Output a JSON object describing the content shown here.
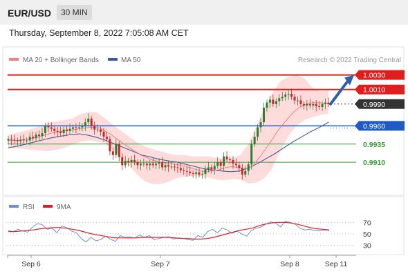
{
  "header": {
    "symbol": "EUR/USD",
    "timeframe": "30 MIN"
  },
  "timestamp": "Thursday, September 8, 2022 7:05:08 AM CET",
  "legend": {
    "ma20": "MA 20 + Bollinger Bands",
    "ma50": "MA 50",
    "rsi": "RSI",
    "rsi_ma": "9MA"
  },
  "copyright": "Research © 2022 Trading Central",
  "colors": {
    "up": "#2e7d32",
    "down": "#c62828",
    "ma20": "#f08080",
    "ma50": "#3b5b9d",
    "band": "#ffd6d6",
    "resistance": "#e11d1d",
    "pivot": "#1e5bc6",
    "support": "#3a9a3a",
    "rsi": "#6b8fd6",
    "rsi_ma": "#e11d1d"
  },
  "chart_data": [
    {
      "type": "candlestick",
      "ylim": [
        0.9875,
        1.0042
      ],
      "grid": false,
      "legend_position": "top",
      "x_ticks": [
        "Sep 6",
        "Sep 7",
        "Sep 8",
        "Sep 11"
      ],
      "current_price": 0.999,
      "levels": [
        {
          "label": "1.0030",
          "value": 1.003,
          "role": "resistance"
        },
        {
          "label": "1.0010",
          "value": 1.001,
          "role": "resistance"
        },
        {
          "label": "0.9990",
          "value": 0.999,
          "role": "current"
        },
        {
          "label": "0.9960",
          "value": 0.996,
          "role": "pivot"
        },
        {
          "label": "0.9935",
          "value": 0.9935,
          "role": "support"
        },
        {
          "label": "0.9910",
          "value": 0.991,
          "role": "support"
        }
      ],
      "forecast": {
        "from": 0.999,
        "to": 1.003,
        "direction": "up"
      },
      "close": [
        0.9942,
        0.9941,
        0.994,
        0.9939,
        0.9941,
        0.994,
        0.994,
        0.9945,
        0.9943,
        0.9948,
        0.9946,
        0.995,
        0.996,
        0.9958,
        0.9956,
        0.9953,
        0.9952,
        0.995,
        0.9955,
        0.9953,
        0.9956,
        0.9958,
        0.9957,
        0.9958,
        0.996,
        0.9965,
        0.997,
        0.996,
        0.9955,
        0.9955,
        0.9952,
        0.9945,
        0.9942,
        0.9925,
        0.992,
        0.9935,
        0.9917,
        0.9906,
        0.9912,
        0.991,
        0.9913,
        0.991,
        0.9906,
        0.9908,
        0.9908,
        0.9906,
        0.9908,
        0.9906,
        0.9908,
        0.991,
        0.9903,
        0.9906,
        0.9904,
        0.9904,
        0.9903,
        0.9902,
        0.9899,
        0.9898,
        0.9897,
        0.9895,
        0.9894,
        0.9896,
        0.9893,
        0.9894,
        0.99,
        0.9903,
        0.99,
        0.9905,
        0.991,
        0.9905,
        0.9918,
        0.9914,
        0.9913,
        0.9908,
        0.9906,
        0.9902,
        0.9893,
        0.9898,
        0.9907,
        0.9935,
        0.9945,
        0.9958,
        0.9965,
        0.9985,
        0.9992,
        0.9996,
        0.999,
        0.9994,
        0.9998,
        1.0,
        1.0003,
        1.0004,
        1.0,
        0.9995,
        0.9995,
        0.999,
        0.9988,
        0.999,
        0.9988,
        0.999,
        0.9987,
        0.9986,
        0.999,
        0.9992,
        0.999
      ],
      "ma20": [
        0.994,
        0.994,
        0.994,
        0.9941,
        0.9942,
        0.9943,
        0.9945,
        0.9947,
        0.9949,
        0.9951,
        0.9952,
        0.9953,
        0.9954,
        0.9955,
        0.9956,
        0.9957,
        0.9958,
        0.9958,
        0.9957,
        0.9953,
        0.9949,
        0.9944,
        0.9939,
        0.9934,
        0.9929,
        0.9925,
        0.992,
        0.9917,
        0.9914,
        0.9912,
        0.991,
        0.9909,
        0.9908,
        0.9907,
        0.9906,
        0.9904,
        0.9902,
        0.99,
        0.9898,
        0.9897,
        0.9898,
        0.9899,
        0.9901,
        0.9903,
        0.9904,
        0.9903,
        0.9902,
        0.9901,
        0.9905,
        0.9913,
        0.9922,
        0.9932,
        0.9942,
        0.9953,
        0.9962,
        0.997,
        0.9978,
        0.9984,
        0.9988,
        0.9991,
        0.9992,
        0.9992,
        0.9991,
        0.999
      ],
      "ma50": [
        0.993,
        0.9932,
        0.9935,
        0.9938,
        0.9941,
        0.9944,
        0.9946,
        0.9948,
        0.9949,
        0.9947,
        0.9944,
        0.994,
        0.9935,
        0.993,
        0.9925,
        0.992,
        0.9917,
        0.9914,
        0.9912,
        0.991,
        0.9907,
        0.9904,
        0.9901,
        0.9899,
        0.9898,
        0.9897,
        0.9898,
        0.9902,
        0.9908,
        0.9915,
        0.9922,
        0.993,
        0.9938,
        0.9945,
        0.9952,
        0.9958,
        0.9965
      ],
      "bb_upper": [
        0.9948,
        0.995,
        0.9953,
        0.9956,
        0.996,
        0.9964,
        0.9966,
        0.9968,
        0.997,
        0.9976,
        0.9979,
        0.9979,
        0.9971,
        0.9962,
        0.9954,
        0.9946,
        0.9938,
        0.9932,
        0.9928,
        0.9925,
        0.9922,
        0.992,
        0.992,
        0.9918,
        0.9918,
        0.9918,
        0.9916,
        0.9914,
        0.9916,
        0.992,
        0.9935,
        0.996,
        0.9985,
        1.0005,
        1.0022,
        1.0027,
        1.003,
        1.0025,
        1.0012,
        1.0008,
        1.0009
      ],
      "bb_lower": [
        0.9929,
        0.9929,
        0.9928,
        0.9927,
        0.9926,
        0.9925,
        0.9927,
        0.993,
        0.9934,
        0.9938,
        0.994,
        0.9939,
        0.9936,
        0.9928,
        0.9918,
        0.9906,
        0.9894,
        0.9884,
        0.988,
        0.988,
        0.9883,
        0.9888,
        0.989,
        0.9891,
        0.9891,
        0.9889,
        0.9886,
        0.9885,
        0.9887,
        0.9886,
        0.9881,
        0.9882,
        0.9888,
        0.9902,
        0.9926,
        0.9946,
        0.996,
        0.9968,
        0.9972,
        0.9975,
        0.9977
      ]
    },
    {
      "type": "line",
      "title": "RSI",
      "ylim": [
        20,
        80
      ],
      "y_ticks": [
        70,
        50,
        30
      ],
      "series": [
        {
          "name": "RSI",
          "values": [
            56,
            54,
            58,
            55,
            53,
            62,
            68,
            66,
            58,
            60,
            52,
            64,
            61,
            55,
            52,
            42,
            36,
            44,
            38,
            40,
            46,
            41,
            37,
            47,
            44,
            45,
            43,
            48,
            44,
            47,
            40,
            42,
            44,
            45,
            41,
            43,
            42,
            40,
            39,
            47,
            44,
            54,
            58,
            52,
            60,
            57,
            51,
            55,
            50,
            46,
            56,
            60,
            62,
            67,
            71,
            69,
            62,
            72,
            70,
            67,
            60,
            57,
            58,
            56,
            55,
            57,
            56
          ]
        },
        {
          "name": "9MA",
          "values": [
            54,
            54,
            55,
            56,
            57,
            59,
            60,
            61,
            61,
            60,
            58,
            56,
            53,
            50,
            48,
            46,
            44,
            43,
            43,
            43,
            43,
            44,
            44,
            44,
            44,
            44,
            43,
            42,
            42,
            41,
            41,
            42,
            44,
            47,
            50,
            53,
            56,
            58,
            60,
            64,
            67,
            69,
            70,
            70,
            69,
            67,
            64,
            61,
            59,
            58,
            57
          ]
        }
      ]
    }
  ]
}
